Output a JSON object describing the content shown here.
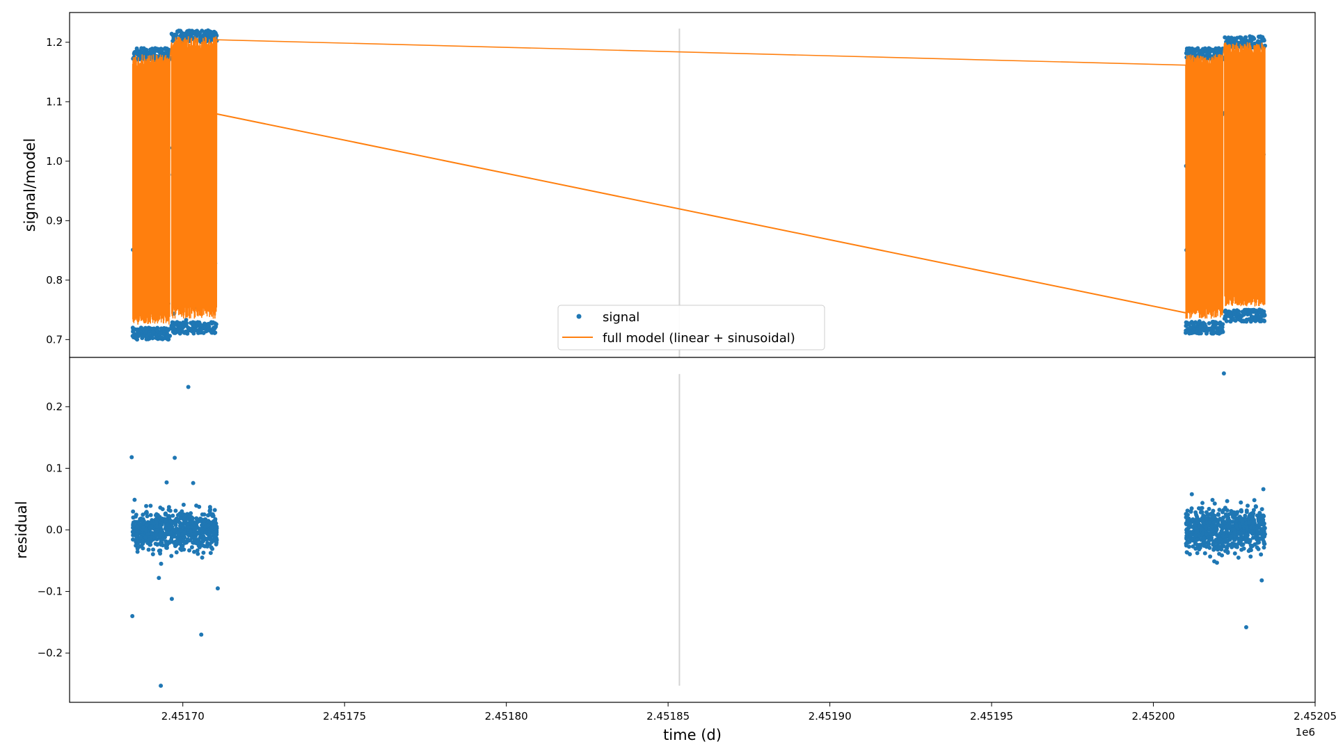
{
  "chart_data": [
    {
      "type": "line",
      "panel": "top",
      "ylabel": "signal/model",
      "xlabel": "",
      "ylim": [
        0.67,
        1.25
      ],
      "yticks": [
        "0.7",
        "0.8",
        "0.9",
        "1.0",
        "1.1",
        "1.2"
      ],
      "legend": {
        "placement": "lower center",
        "entries": [
          "signal",
          "full model (linear + sinusoidal)"
        ]
      },
      "series": [
        {
          "name": "signal",
          "marker": "dots",
          "color": "#1f77b4",
          "segments": [
            {
              "x_start": 2451684.5,
              "x_end": 2451696.0,
              "y_low": 0.7,
              "y_high": 1.19
            },
            {
              "x_start": 2451696.5,
              "x_end": 2451710.5,
              "y_low": 0.71,
              "y_high": 1.22
            },
            {
              "x_start": 2452010.0,
              "x_end": 2452021.5,
              "y_low": 0.71,
              "y_high": 1.19
            },
            {
              "x_start": 2452022.0,
              "x_end": 2452034.5,
              "y_low": 0.73,
              "y_high": 1.21
            }
          ]
        },
        {
          "name": "full model (linear + sinusoidal)",
          "marker": "line",
          "color": "#ff7f0e",
          "trend_line": {
            "x": [
              2451710.0,
              2452010.0
            ],
            "y": [
              1.08,
              0.745
            ]
          }
        }
      ],
      "vertical_marker": {
        "x": 2451853.5,
        "color": "#d3d3d3"
      }
    },
    {
      "type": "scatter",
      "panel": "bottom",
      "ylabel": "residual",
      "xlabel": "time (d)",
      "x_offset_label": "1e6",
      "xlim": [
        2451665.0,
        2452050.0
      ],
      "ylim": [
        -0.28,
        0.28
      ],
      "xticks": [
        "2.45170",
        "2.45175",
        "2.45180",
        "2.45185",
        "2.45190",
        "2.45195",
        "2.45200",
        "2.45205"
      ],
      "yticks": [
        "−0.2",
        "−0.1",
        "0.0",
        "0.1",
        "0.2"
      ],
      "color": "#1f77b4",
      "outliers": [
        {
          "x": 2451684.2,
          "y": 0.118
        },
        {
          "x": 2451684.4,
          "y": -0.14
        },
        {
          "x": 2451693.2,
          "y": -0.253
        },
        {
          "x": 2451692.6,
          "y": -0.078
        },
        {
          "x": 2451695.0,
          "y": 0.077
        },
        {
          "x": 2451697.5,
          "y": 0.117
        },
        {
          "x": 2451696.6,
          "y": -0.112
        },
        {
          "x": 2451701.7,
          "y": 0.232
        },
        {
          "x": 2451703.2,
          "y": 0.076
        },
        {
          "x": 2451705.7,
          "y": -0.17
        },
        {
          "x": 2451710.8,
          "y": -0.095
        },
        {
          "x": 2452021.8,
          "y": 0.254
        },
        {
          "x": 2452028.7,
          "y": -0.158
        },
        {
          "x": 2452033.5,
          "y": -0.082
        },
        {
          "x": 2452034.0,
          "y": 0.066
        }
      ],
      "clusters": [
        {
          "x_start": 2451684.5,
          "x_end": 2451710.5,
          "y_sigma": 0.015
        },
        {
          "x_start": 2452010.0,
          "x_end": 2452034.5,
          "y_sigma": 0.017
        }
      ],
      "vertical_marker": {
        "x": 2451853.5,
        "color": "#d3d3d3"
      }
    }
  ]
}
